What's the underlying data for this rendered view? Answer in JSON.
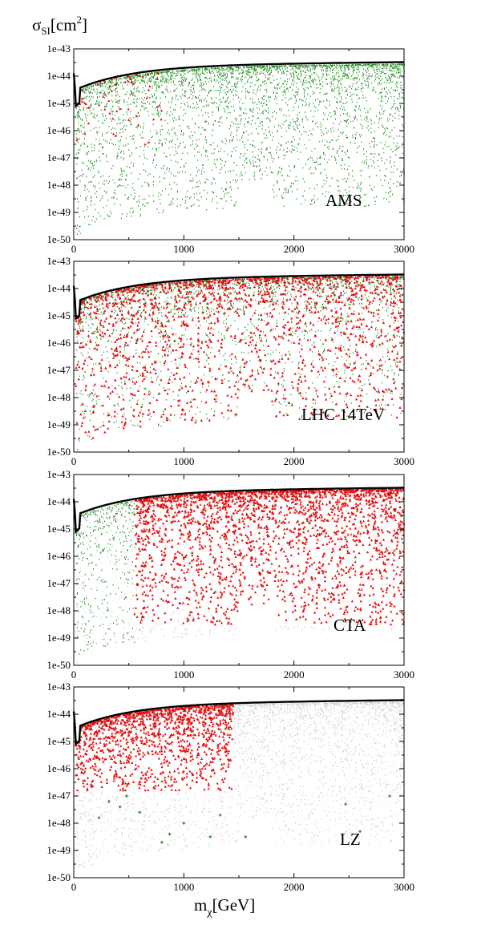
{
  "figure": {
    "ylabel_main": "σ",
    "ylabel_sub": "SI",
    "ylabel_unit": "[cm",
    "ylabel_exp": "2",
    "ylabel_close": "]",
    "xlabel_main": "m",
    "xlabel_sub": "χ",
    "xlabel_unit": "[GeV]"
  },
  "colors": {
    "green": "#1a8a1a",
    "red": "#e01010",
    "gray": "#cfcfcf",
    "boundary": "#000000"
  },
  "chart_data": [
    {
      "type": "scatter",
      "panel_label": "AMS",
      "xlabel": "",
      "ylabel": "",
      "xlim": [
        0,
        3000
      ],
      "ylim": [
        -50,
        -43
      ],
      "yscale": "log",
      "x_ticks": [
        "0",
        "1000",
        "2000",
        "3000"
      ],
      "y_ticks": [
        "1e-43",
        "1e-44",
        "1e-45",
        "1e-46",
        "1e-47",
        "1e-48",
        "1e-49",
        "1e-50"
      ],
      "series_roles": {
        "background": "green",
        "highlight": "red"
      },
      "highlight_weight": 0.1,
      "highlight_xmax": 800,
      "highlight_ymin": -46.8
    },
    {
      "type": "scatter",
      "panel_label": "LHC 14TeV",
      "xlabel": "",
      "ylabel": "",
      "xlim": [
        0,
        3000
      ],
      "ylim": [
        -50,
        -43
      ],
      "yscale": "log",
      "x_ticks": [
        "0",
        "1000",
        "2000",
        "3000"
      ],
      "y_ticks": [
        "1e-43",
        "1e-44",
        "1e-45",
        "1e-46",
        "1e-47",
        "1e-48",
        "1e-49",
        "1e-50"
      ],
      "series_roles": {
        "background": "green",
        "highlight": "red"
      },
      "highlight_weight": 0.5,
      "highlight_xmax": 3000,
      "highlight_ymin": -49.5
    },
    {
      "type": "scatter",
      "panel_label": "CTA",
      "xlabel": "",
      "ylabel": "",
      "xlim": [
        0,
        3000
      ],
      "ylim": [
        -50,
        -43
      ],
      "yscale": "log",
      "x_ticks": [
        "0",
        "1000",
        "2000",
        "3000"
      ],
      "y_ticks": [
        "1e-43",
        "1e-44",
        "1e-45",
        "1e-46",
        "1e-47",
        "1e-48",
        "1e-49",
        "1e-50"
      ],
      "series_roles": {
        "background": "gray",
        "mid": "green",
        "highlight": "red"
      },
      "highlight_weight": 0.85,
      "highlight_xmin": 550,
      "highlight_ymin": -48.5
    },
    {
      "type": "scatter",
      "panel_label": "LZ",
      "xlabel": "m_χ [GeV]",
      "ylabel": "",
      "xlim": [
        0,
        3000
      ],
      "ylim": [
        -50,
        -43
      ],
      "yscale": "log",
      "x_ticks": [
        "0",
        "1000",
        "2000",
        "3000"
      ],
      "y_ticks": [
        "1e-43",
        "1e-44",
        "1e-45",
        "1e-46",
        "1e-47",
        "1e-48",
        "1e-49",
        "1e-50"
      ],
      "series_roles": {
        "background": "gray",
        "highlight": "red",
        "sparse": "green"
      },
      "highlight_weight": 0.9,
      "highlight_xmax": 1450,
      "highlight_ymin": -46.8,
      "sparse_points": [
        [
          230,
          -47.8
        ],
        [
          320,
          -47.2
        ],
        [
          420,
          -47.4
        ],
        [
          480,
          -47.0
        ],
        [
          600,
          -47.6
        ],
        [
          800,
          -48.7
        ],
        [
          870,
          -48.4
        ],
        [
          1000,
          -48.0
        ],
        [
          1240,
          -48.5
        ],
        [
          1330,
          -47.7
        ],
        [
          1560,
          -48.5
        ],
        [
          2470,
          -47.3
        ],
        [
          2600,
          -48.3
        ],
        [
          2870,
          -47.0
        ]
      ]
    }
  ]
}
